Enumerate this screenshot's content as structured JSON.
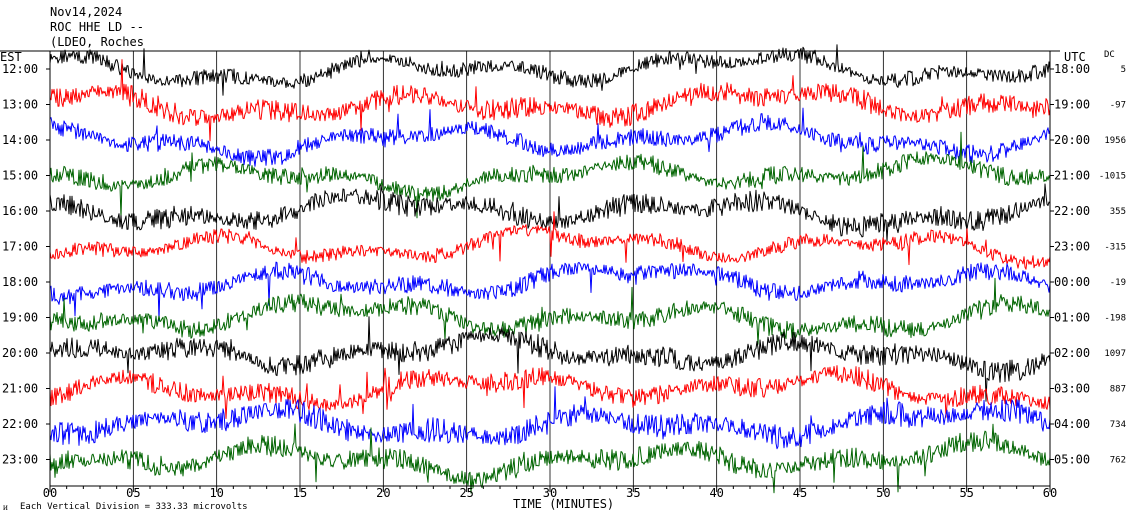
{
  "header": {
    "date": "Nov14,2024",
    "station": "ROC HHE LD --",
    "network": "(LDEO, Roches"
  },
  "left_axis_title": "EST",
  "right_axis_title": "UTC",
  "dc_title": "DC",
  "footer": {
    "scale": "Each Vertical Division =  333.33 microvolts"
  },
  "colors": {
    "black": "#000000",
    "red": "#ff0000",
    "blue": "#0000ff",
    "green": "#006400",
    "grid": "#000000"
  },
  "chart_data": {
    "type": "line",
    "title": "Nov14,2024",
    "xlabel": "TIME (MINUTES)",
    "ylabel": "EST",
    "xlim": [
      0,
      60
    ],
    "x_ticks": [
      "00",
      "05",
      "10",
      "15",
      "20",
      "25",
      "30",
      "35",
      "40",
      "45",
      "50",
      "55",
      "60"
    ],
    "series": [
      {
        "est": "12:00",
        "utc": "18:00",
        "dc": "5",
        "color": "black"
      },
      {
        "est": "13:00",
        "utc": "19:00",
        "dc": "-97",
        "color": "red"
      },
      {
        "est": "14:00",
        "utc": "20:00",
        "dc": "1956",
        "color": "blue"
      },
      {
        "est": "15:00",
        "utc": "21:00",
        "dc": "-1015",
        "color": "green"
      },
      {
        "est": "16:00",
        "utc": "22:00",
        "dc": "355",
        "color": "black"
      },
      {
        "est": "17:00",
        "utc": "23:00",
        "dc": "-315",
        "color": "red"
      },
      {
        "est": "18:00",
        "utc": "00:00",
        "dc": "-19",
        "color": "blue"
      },
      {
        "est": "19:00",
        "utc": "01:00",
        "dc": "-198",
        "color": "green"
      },
      {
        "est": "20:00",
        "utc": "02:00",
        "dc": "1097",
        "color": "black"
      },
      {
        "est": "21:00",
        "utc": "03:00",
        "dc": "887",
        "color": "red"
      },
      {
        "est": "22:00",
        "utc": "04:00",
        "dc": "734",
        "color": "blue"
      },
      {
        "est": "23:00",
        "utc": "05:00",
        "dc": "762",
        "color": "green"
      }
    ]
  }
}
